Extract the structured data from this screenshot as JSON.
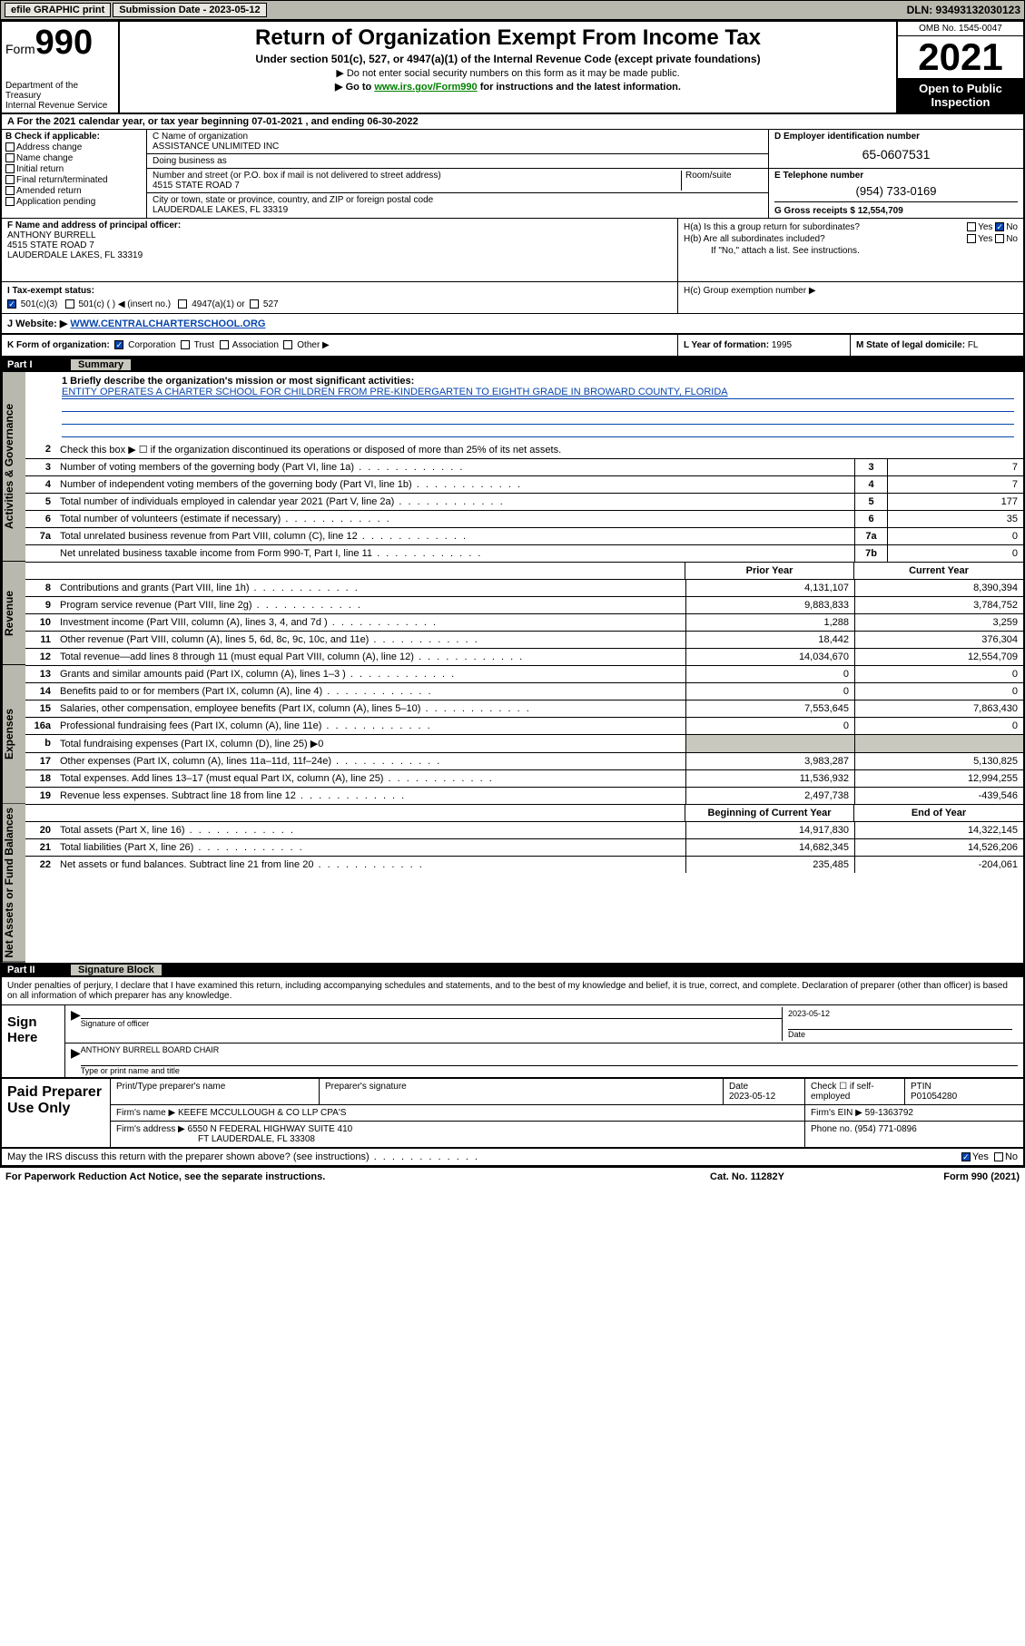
{
  "topbar": {
    "efile_btn": "efile GRAPHIC print",
    "sub_label": "Submission Date - 2023-05-12",
    "dln": "DLN: 93493132030123"
  },
  "header": {
    "form_small": "Form",
    "form_big": "990",
    "dept": "Department of the Treasury",
    "irs": "Internal Revenue Service",
    "title": "Return of Organization Exempt From Income Tax",
    "subtitle": "Under section 501(c), 527, or 4947(a)(1) of the Internal Revenue Code (except private foundations)",
    "note1": "▶ Do not enter social security numbers on this form as it may be made public.",
    "note2_pre": "▶ Go to ",
    "note2_link": "www.irs.gov/Form990",
    "note2_post": " for instructions and the latest information.",
    "omb": "OMB No. 1545-0047",
    "year": "2021",
    "ribbon": "Open to Public Inspection"
  },
  "row_a": "A For the 2021 calendar year, or tax year beginning 07-01-2021   , and ending 06-30-2022",
  "section_b": {
    "hdr": "B Check if applicable:",
    "opts": [
      "Address change",
      "Name change",
      "Initial return",
      "Final return/terminated",
      "Amended return",
      "Application pending"
    ]
  },
  "section_c": {
    "name_lbl": "C Name of organization",
    "name_val": "ASSISTANCE UNLIMITED INC",
    "dba_lbl": "Doing business as",
    "street_lbl": "Number and street (or P.O. box if mail is not delivered to street address)",
    "street_val": "4515 STATE ROAD 7",
    "room_lbl": "Room/suite",
    "city_lbl": "City or town, state or province, country, and ZIP or foreign postal code",
    "city_val": "LAUDERDALE LAKES, FL  33319"
  },
  "section_d": {
    "hdr": "D Employer identification number",
    "val": "65-0607531"
  },
  "section_e": {
    "hdr": "E Telephone number",
    "val": "(954) 733-0169"
  },
  "section_g": {
    "lbl": "G Gross receipts $",
    "val": "12,554,709"
  },
  "section_f": {
    "hdr": "F Name and address of principal officer:",
    "name": "ANTHONY BURRELL",
    "addr1": "4515 STATE ROAD 7",
    "addr2": "LAUDERDALE LAKES, FL  33319"
  },
  "section_h": {
    "ha_q": "H(a)  Is this a group return for subordinates?",
    "hb_q": "H(b)  Are all subordinates included?",
    "hb_note": "If \"No,\" attach a list. See instructions.",
    "hc_q": "H(c)  Group exemption number ▶"
  },
  "section_i": {
    "lbl": "I   Tax-exempt status:",
    "o1": "501(c)(3)",
    "o2": "501(c) (  ) ◀ (insert no.)",
    "o3": "4947(a)(1) or",
    "o4": "527"
  },
  "section_j": {
    "lbl": "J   Website: ▶",
    "val": "WWW.CENTRALCHARTERSCHOOL.ORG"
  },
  "section_k": "K Form of organization:",
  "k_opts": [
    "Corporation",
    "Trust",
    "Association",
    "Other ▶"
  ],
  "section_l": {
    "lbl": "L Year of formation:",
    "val": "1995"
  },
  "section_m": {
    "lbl": "M State of legal domicile:",
    "val": "FL"
  },
  "part1": {
    "num": "Part I",
    "title": "Summary"
  },
  "line1": {
    "lbl": "1  Briefly describe the organization's mission or most significant activities:",
    "val": "ENTITY OPERATES A CHARTER SCHOOL FOR CHILDREN FROM PRE-KINDERGARTEN TO EIGHTH GRADE IN BROWARD COUNTY, FLORIDA"
  },
  "line2": "Check this box ▶ ☐  if the organization discontinued its operations or disposed of more than 25% of its net assets.",
  "gov_rows": [
    {
      "n": "3",
      "lbl": "Number of voting members of the governing body (Part VI, line 1a)",
      "box": "3",
      "val": "7"
    },
    {
      "n": "4",
      "lbl": "Number of independent voting members of the governing body (Part VI, line 1b)",
      "box": "4",
      "val": "7"
    },
    {
      "n": "5",
      "lbl": "Total number of individuals employed in calendar year 2021 (Part V, line 2a)",
      "box": "5",
      "val": "177"
    },
    {
      "n": "6",
      "lbl": "Total number of volunteers (estimate if necessary)",
      "box": "6",
      "val": "35"
    },
    {
      "n": "7a",
      "lbl": "Total unrelated business revenue from Part VIII, column (C), line 12",
      "box": "7a",
      "val": "0"
    },
    {
      "n": "",
      "lbl": "Net unrelated business taxable income from Form 990-T, Part I, line 11",
      "box": "7b",
      "val": "0"
    }
  ],
  "col_hdr": {
    "c1": "Prior Year",
    "c2": "Current Year"
  },
  "rev_rows": [
    {
      "n": "8",
      "lbl": "Contributions and grants (Part VIII, line 1h)",
      "c1": "4,131,107",
      "c2": "8,390,394"
    },
    {
      "n": "9",
      "lbl": "Program service revenue (Part VIII, line 2g)",
      "c1": "9,883,833",
      "c2": "3,784,752"
    },
    {
      "n": "10",
      "lbl": "Investment income (Part VIII, column (A), lines 3, 4, and 7d )",
      "c1": "1,288",
      "c2": "3,259"
    },
    {
      "n": "11",
      "lbl": "Other revenue (Part VIII, column (A), lines 5, 6d, 8c, 9c, 10c, and 11e)",
      "c1": "18,442",
      "c2": "376,304"
    },
    {
      "n": "12",
      "lbl": "Total revenue—add lines 8 through 11 (must equal Part VIII, column (A), line 12)",
      "c1": "14,034,670",
      "c2": "12,554,709"
    }
  ],
  "exp_rows": [
    {
      "n": "13",
      "lbl": "Grants and similar amounts paid (Part IX, column (A), lines 1–3 )",
      "c1": "0",
      "c2": "0"
    },
    {
      "n": "14",
      "lbl": "Benefits paid to or for members (Part IX, column (A), line 4)",
      "c1": "0",
      "c2": "0"
    },
    {
      "n": "15",
      "lbl": "Salaries, other compensation, employee benefits (Part IX, column (A), lines 5–10)",
      "c1": "7,553,645",
      "c2": "7,863,430"
    },
    {
      "n": "16a",
      "lbl": "Professional fundraising fees (Part IX, column (A), line 11e)",
      "c1": "0",
      "c2": "0"
    },
    {
      "n": "b",
      "lbl": "Total fundraising expenses (Part IX, column (D), line 25) ▶0",
      "shade": true
    },
    {
      "n": "17",
      "lbl": "Other expenses (Part IX, column (A), lines 11a–11d, 11f–24e)",
      "c1": "3,983,287",
      "c2": "5,130,825"
    },
    {
      "n": "18",
      "lbl": "Total expenses. Add lines 13–17 (must equal Part IX, column (A), line 25)",
      "c1": "11,536,932",
      "c2": "12,994,255"
    },
    {
      "n": "19",
      "lbl": "Revenue less expenses. Subtract line 18 from line 12",
      "c1": "2,497,738",
      "c2": "-439,546"
    }
  ],
  "na_hdr": {
    "c1": "Beginning of Current Year",
    "c2": "End of Year"
  },
  "na_rows": [
    {
      "n": "20",
      "lbl": "Total assets (Part X, line 16)",
      "c1": "14,917,830",
      "c2": "14,322,145"
    },
    {
      "n": "21",
      "lbl": "Total liabilities (Part X, line 26)",
      "c1": "14,682,345",
      "c2": "14,526,206"
    },
    {
      "n": "22",
      "lbl": "Net assets or fund balances. Subtract line 21 from line 20",
      "c1": "235,485",
      "c2": "-204,061"
    }
  ],
  "vtabs": {
    "gov": "Activities & Governance",
    "rev": "Revenue",
    "exp": "Expenses",
    "na": "Net Assets or Fund Balances"
  },
  "part2": {
    "num": "Part II",
    "title": "Signature Block"
  },
  "sig_intro": "Under penalties of perjury, I declare that I have examined this return, including accompanying schedules and statements, and to the best of my knowledge and belief, it is true, correct, and complete. Declaration of preparer (other than officer) is based on all information of which preparer has any knowledge.",
  "sign": {
    "left": "Sign Here",
    "sig_lbl": "Signature of officer",
    "date_val": "2023-05-12",
    "date_lbl": "Date",
    "name_val": "ANTHONY BURRELL  BOARD CHAIR",
    "name_lbl": "Type or print name and title"
  },
  "prep": {
    "left": "Paid Preparer Use Only",
    "r1": {
      "c1_lbl": "Print/Type preparer's name",
      "c2_lbl": "Preparer's signature",
      "c3_lbl": "Date",
      "c3_val": "2023-05-12",
      "c4_lbl": "Check ☐ if self-employed",
      "c5_lbl": "PTIN",
      "c5_val": "P01054280"
    },
    "r2": {
      "c1_lbl": "Firm's name    ▶",
      "c1_val": "KEEFE MCCULLOUGH & CO LLP CPA'S",
      "c2_lbl": "Firm's EIN ▶",
      "c2_val": "59-1363792"
    },
    "r3": {
      "c1_lbl": "Firm's address ▶",
      "c1_val": "6550 N FEDERAL HIGHWAY SUITE 410",
      "c1_val2": "FT LAUDERDALE, FL  33308",
      "c2_lbl": "Phone no.",
      "c2_val": "(954) 771-0896"
    }
  },
  "discuss": "May the IRS discuss this return with the preparer shown above? (see instructions)",
  "footer": {
    "f1": "For Paperwork Reduction Act Notice, see the separate instructions.",
    "f2": "Cat. No. 11282Y",
    "f3": "Form 990 (2021)"
  }
}
